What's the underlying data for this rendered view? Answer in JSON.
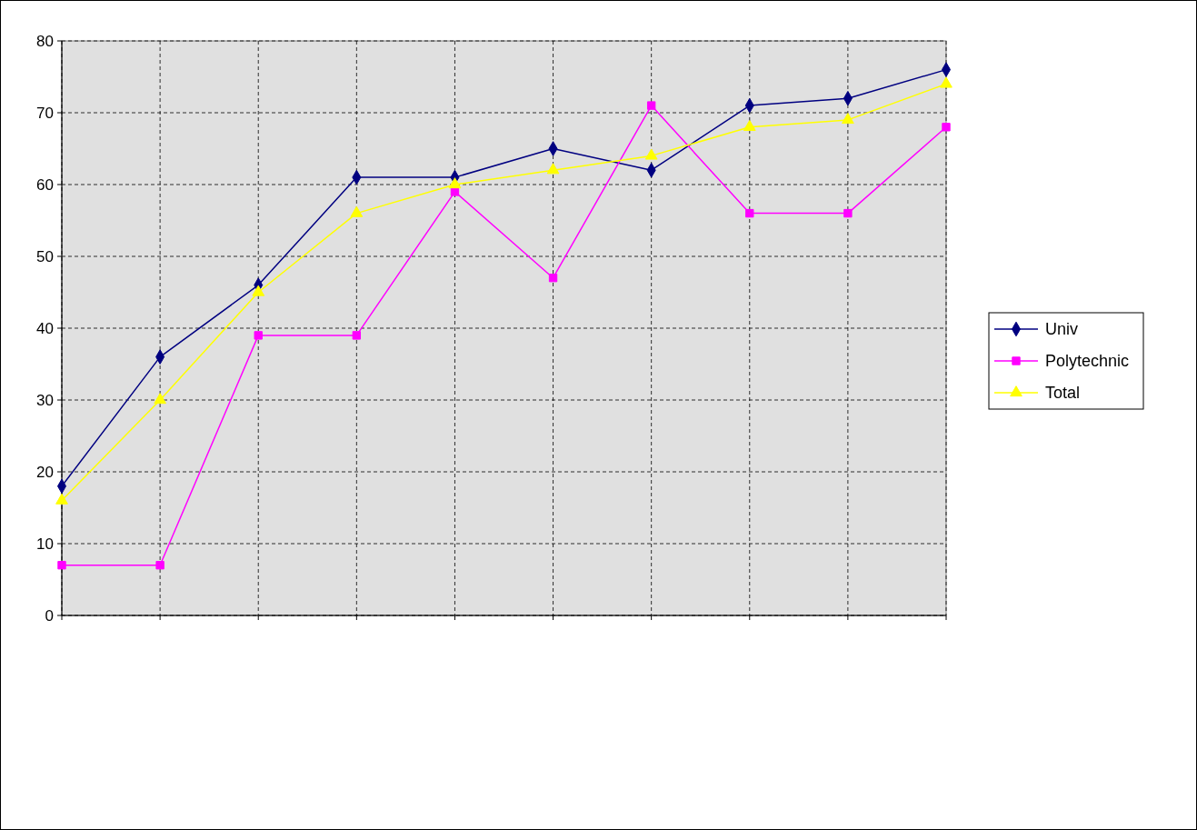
{
  "chart_data": {
    "type": "line",
    "categories": [
      null,
      null,
      null,
      null,
      null,
      null,
      null,
      null,
      null,
      null
    ],
    "series": [
      {
        "name": "Univ",
        "color": "#000080",
        "marker": "diamond",
        "values": [
          18,
          36,
          46,
          61,
          61,
          65,
          62,
          71,
          72,
          76
        ]
      },
      {
        "name": "Polytechnic",
        "color": "#ff00ff",
        "marker": "square",
        "values": [
          7,
          7,
          39,
          39,
          59,
          47,
          71,
          56,
          56,
          68
        ]
      },
      {
        "name": "Total",
        "color": "#ffff00",
        "marker": "triangle",
        "values": [
          16,
          30,
          45,
          56,
          60,
          62,
          64,
          68,
          69,
          74
        ]
      }
    ],
    "ylim": [
      0,
      80
    ],
    "yticks": [
      0,
      10,
      20,
      30,
      40,
      50,
      60,
      70,
      80
    ],
    "grid": true,
    "legend": "right",
    "line_style": "solid"
  }
}
